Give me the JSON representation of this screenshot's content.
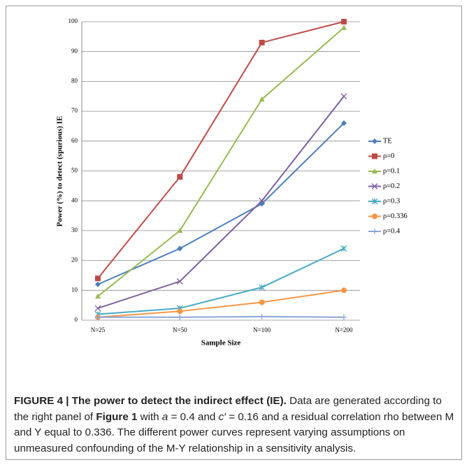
{
  "chart_data": {
    "type": "line",
    "y_label": "Power (%) to detect (spurious) IE",
    "x_label": "Sample Size",
    "categories": [
      "N=25",
      "N=50",
      "N=100",
      "N=200"
    ],
    "series": [
      {
        "name": "TE",
        "color": "#4a7ebb",
        "marker": "diamond",
        "values": [
          12,
          24,
          39,
          66
        ]
      },
      {
        "name": "ρ=0",
        "color": "#be4b48",
        "marker": "square",
        "values": [
          14,
          48,
          93,
          100
        ]
      },
      {
        "name": "ρ=0.1",
        "color": "#98b954",
        "marker": "triangle",
        "values": [
          8,
          30,
          74,
          98
        ]
      },
      {
        "name": "ρ=0.2",
        "color": "#7d60a0",
        "marker": "x",
        "values": [
          4,
          13,
          40,
          75
        ]
      },
      {
        "name": "ρ=0.3",
        "color": "#46aac5",
        "marker": "star",
        "values": [
          2,
          4,
          11,
          24
        ]
      },
      {
        "name": "ρ=0.336",
        "color": "#f79646",
        "marker": "circle",
        "values": [
          1,
          3,
          6,
          10
        ]
      },
      {
        "name": "ρ=0.4",
        "color": "#8aa5d8",
        "marker": "plus",
        "values": [
          1,
          1,
          1.2,
          1
        ]
      }
    ],
    "ylim": [
      0,
      100
    ],
    "yticks": [
      0,
      10,
      20,
      30,
      40,
      50,
      60,
      70,
      80,
      90,
      100
    ],
    "grid": true,
    "legend": "right"
  },
  "caption": {
    "title": "FIGURE 4 | The power to detect the indirect effect (IE).",
    "text1": " Data are generated according to the right panel of ",
    "ref": "Figure 1",
    "text2": " with ",
    "var1": "a",
    "text3": " = 0.4 and ",
    "var2": "c′",
    "text4": " = 0.16 and a residual correlation rho between M and Y equal to 0.336. The different power curves represent varying assumptions on unmeasured confounding of the M-Y relationship in a sensitivity analysis."
  }
}
